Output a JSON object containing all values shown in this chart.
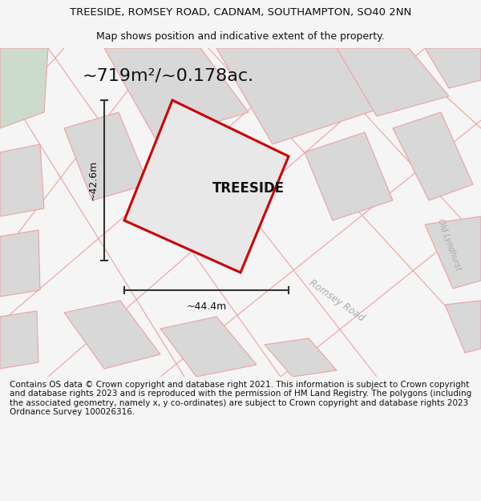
{
  "title_line1": "TREESIDE, ROMSEY ROAD, CADNAM, SOUTHAMPTON, SO40 2NN",
  "title_line2": "Map shows position and indicative extent of the property.",
  "area_label": "~719m²/~0.178ac.",
  "property_name": "TREESIDE",
  "dim_horizontal": "~44.4m",
  "dim_vertical": "~42.6m",
  "road_label1": "Romsey Road",
  "road_label2": "Old Lyndhurst",
  "footer_text": "Contains OS data © Crown copyright and database right 2021. This information is subject to Crown copyright and database rights 2023 and is reproduced with the permission of HM Land Registry. The polygons (including the associated geometry, namely x, y co-ordinates) are subject to Crown copyright and database rights 2023 Ordnance Survey 100026316.",
  "bg_color": "#f5f5f5",
  "map_bg": "#ffffff",
  "red_color": "#cc0000",
  "pink_color": "#f0a0a0",
  "gray_plot": "#d8d8d8",
  "green_corner": "#ccdccc",
  "title_fontsize": 9.5,
  "subtitle_fontsize": 9.0,
  "area_fontsize": 16,
  "property_fontsize": 12,
  "dim_fontsize": 9,
  "footer_fontsize": 7.5,
  "road_fontsize": 8.5,
  "road2_fontsize": 7.0
}
